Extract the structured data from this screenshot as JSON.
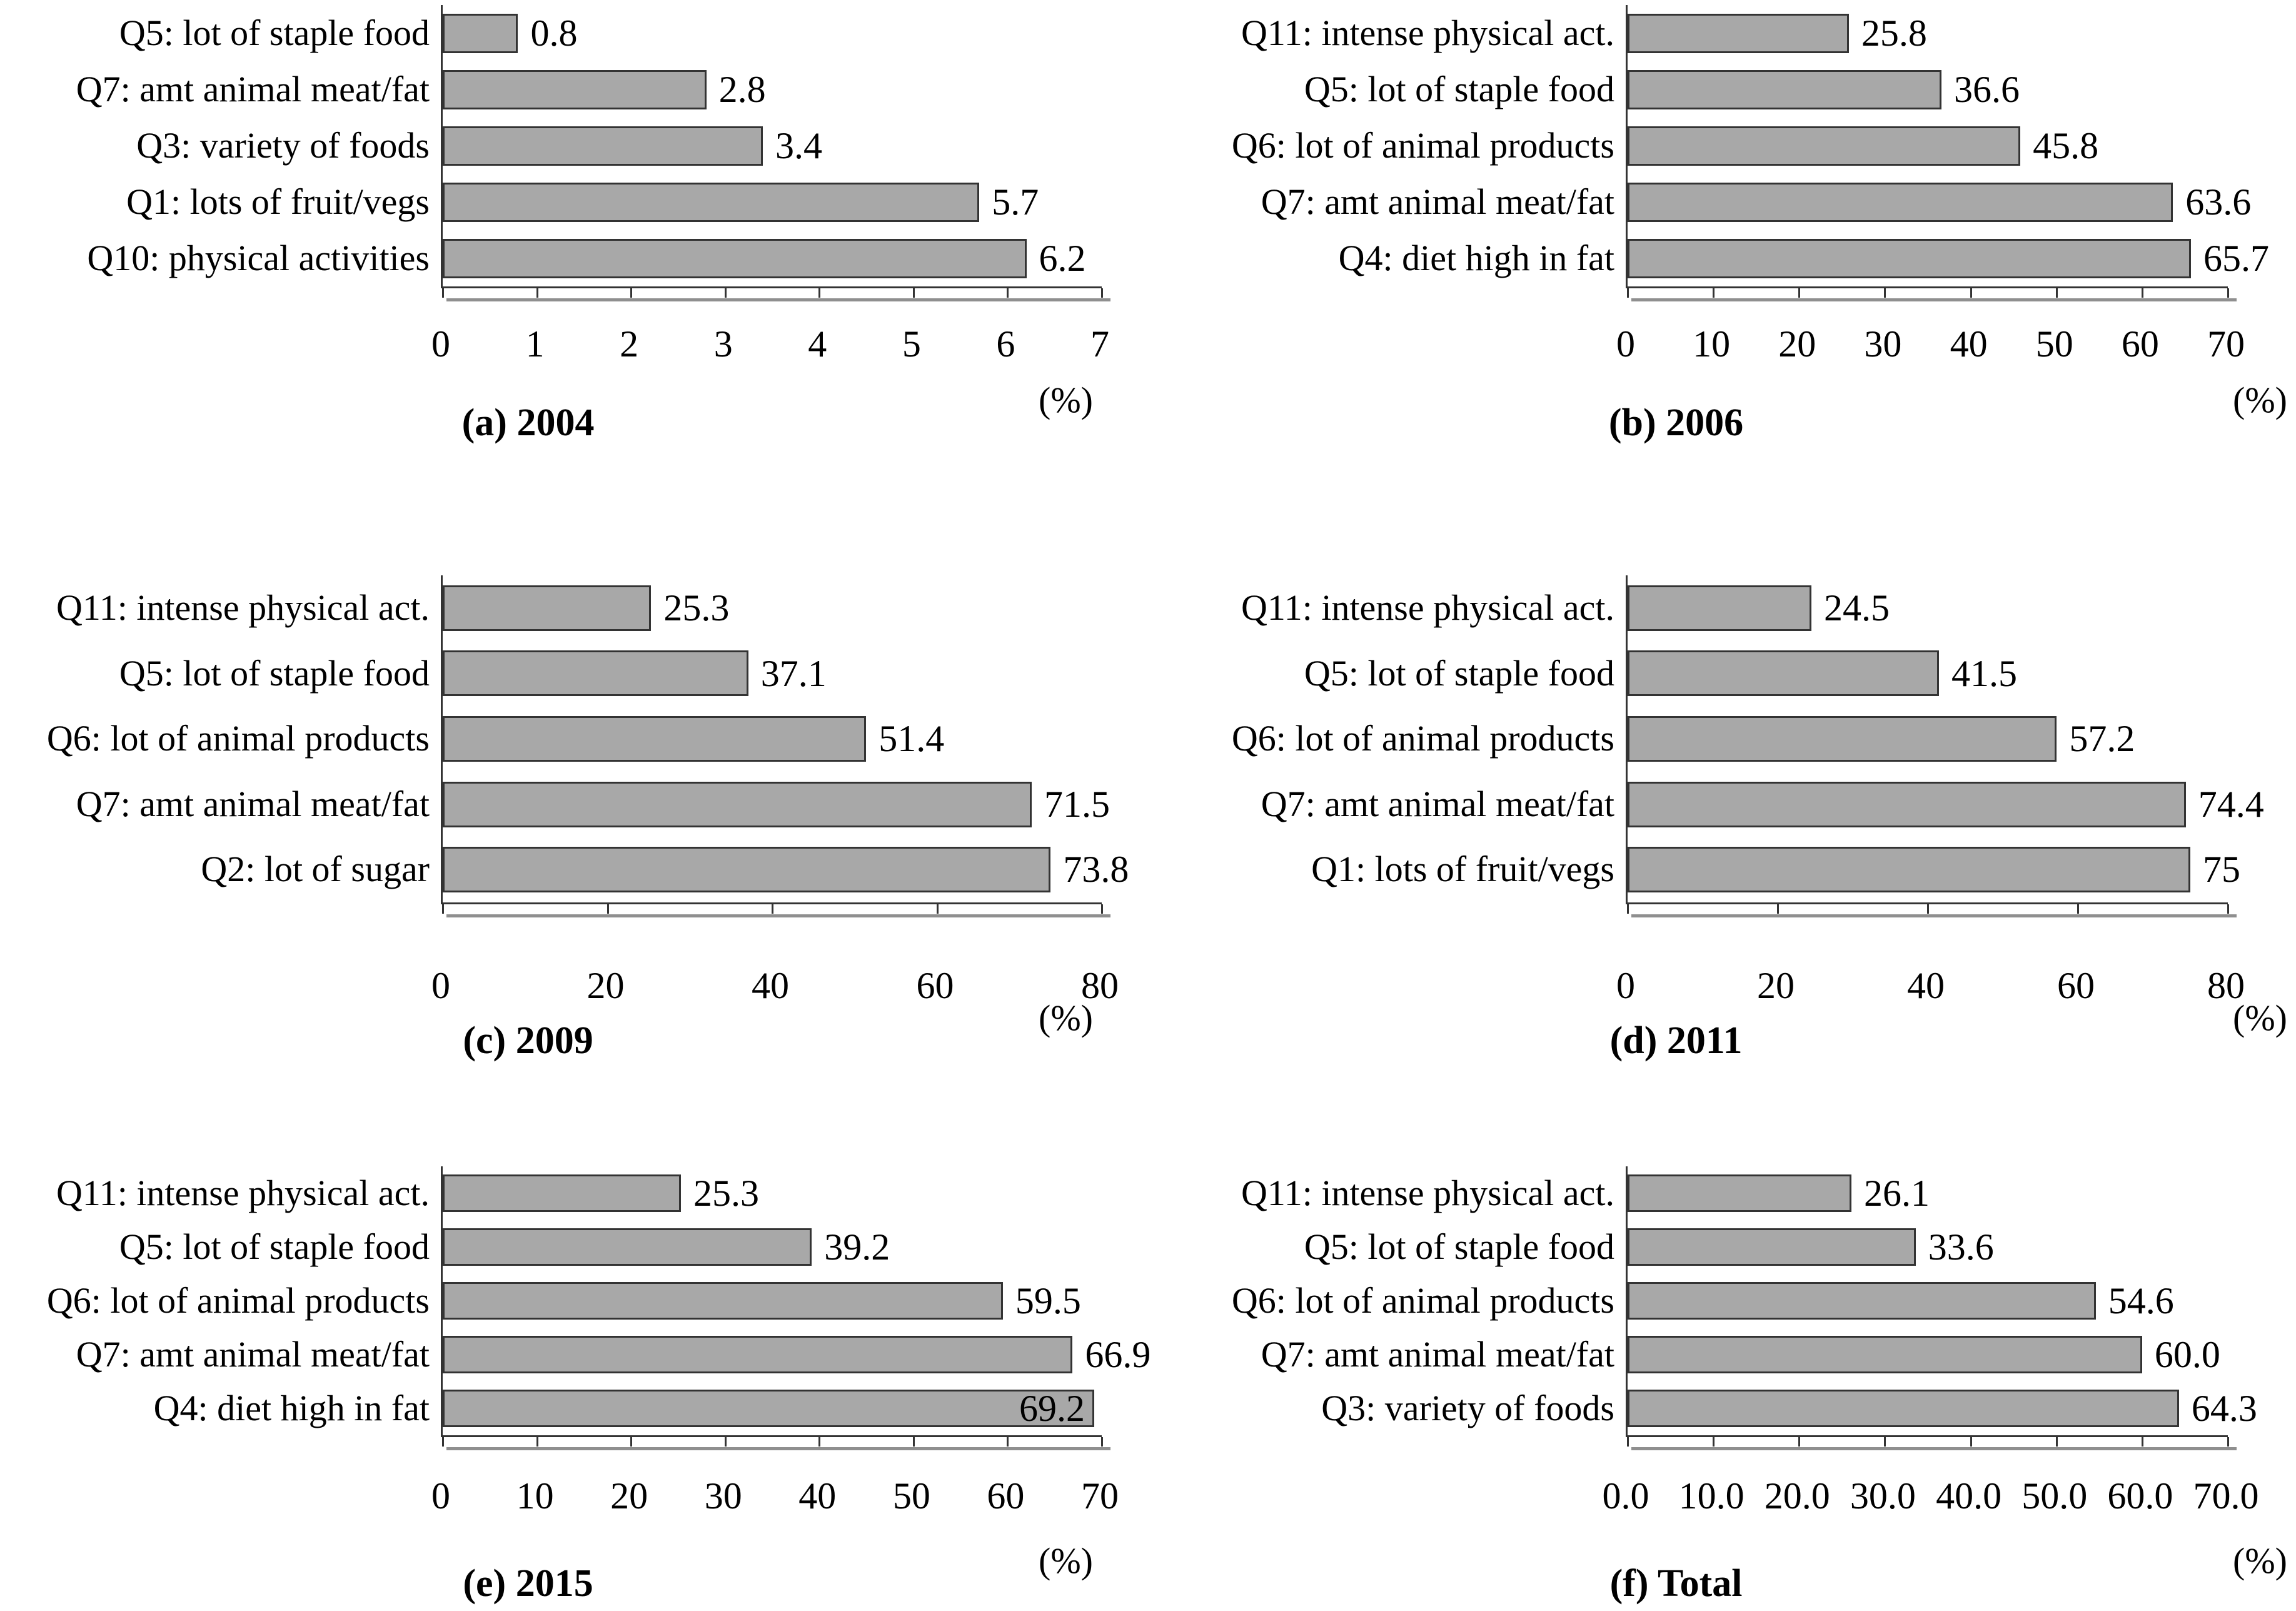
{
  "style": {
    "bar_fill": "#a8a8a8",
    "bar_border": "#333333",
    "axis_color": "#333333",
    "axis_shadow_color": "#8f8f8f",
    "text_color": "#000000"
  },
  "chart_data": [
    {
      "id": "a",
      "type": "bar",
      "orientation": "horizontal",
      "title": "(a) 2004",
      "xlabel": "(%)",
      "categories": [
        "Q5: lot of staple food",
        "Q7: amt animal meat/fat",
        "Q3: variety of foods",
        "Q1: lots of fruit/vegs",
        "Q10: physical activities"
      ],
      "values": [
        0.8,
        2.8,
        3.4,
        5.7,
        6.2
      ],
      "value_labels": [
        "0.8",
        "2.8",
        "3.4",
        "5.7",
        "6.2"
      ],
      "xlim": [
        0,
        7
      ],
      "xticks": [
        "0",
        "1",
        "2",
        "3",
        "4",
        "5",
        "6",
        "7"
      ],
      "grid": false,
      "legend": "none"
    },
    {
      "id": "b",
      "type": "bar",
      "orientation": "horizontal",
      "title": "(b) 2006",
      "xlabel": "(%)",
      "categories": [
        "Q11: intense physical act.",
        "Q5: lot of staple food",
        "Q6: lot of animal products",
        "Q7: amt animal meat/fat",
        "Q4: diet high in fat"
      ],
      "values": [
        25.8,
        36.6,
        45.8,
        63.6,
        65.7
      ],
      "value_labels": [
        "25.8",
        "36.6",
        "45.8",
        "63.6",
        "65.7"
      ],
      "xlim": [
        0,
        70
      ],
      "xticks": [
        "0",
        "10",
        "20",
        "30",
        "40",
        "50",
        "60",
        "70"
      ],
      "grid": false,
      "legend": "none"
    },
    {
      "id": "c",
      "type": "bar",
      "orientation": "horizontal",
      "title": "(c) 2009",
      "xlabel": "(%)",
      "categories": [
        "Q11: intense physical act.",
        "Q5: lot of staple food",
        "Q6: lot of animal products",
        "Q7: amt animal meat/fat",
        "Q2: lot of sugar"
      ],
      "values": [
        25.3,
        37.1,
        51.4,
        71.5,
        73.8
      ],
      "value_labels": [
        "25.3",
        "37.1",
        "51.4",
        "71.5",
        "73.8"
      ],
      "xlim": [
        0,
        80
      ],
      "xticks": [
        "0",
        "20",
        "40",
        "60",
        "80"
      ],
      "grid": false,
      "legend": "none"
    },
    {
      "id": "d",
      "type": "bar",
      "orientation": "horizontal",
      "title": "(d) 2011",
      "xlabel": "(%)",
      "categories": [
        "Q11: intense physical act.",
        "Q5: lot of staple food",
        "Q6: lot of animal products",
        "Q7: amt animal meat/fat",
        "Q1: lots of fruit/vegs"
      ],
      "values": [
        24.5,
        41.5,
        57.2,
        74.4,
        75
      ],
      "value_labels": [
        "24.5",
        "41.5",
        "57.2",
        "74.4",
        "75"
      ],
      "xlim": [
        0,
        80
      ],
      "xticks": [
        "0",
        "20",
        "40",
        "60",
        "80"
      ],
      "grid": false,
      "legend": "none"
    },
    {
      "id": "e",
      "type": "bar",
      "orientation": "horizontal",
      "title": "(e) 2015",
      "xlabel": "(%)",
      "categories": [
        "Q11: intense physical act.",
        "Q5: lot of staple food",
        "Q6: lot of animal products",
        "Q7: amt animal meat/fat",
        "Q4: diet high in fat"
      ],
      "values": [
        25.3,
        39.2,
        59.5,
        66.9,
        69.2
      ],
      "value_labels": [
        "25.3",
        "39.2",
        "59.5",
        "66.9",
        "69.2"
      ],
      "xlim": [
        0,
        70
      ],
      "xticks": [
        "0",
        "10",
        "20",
        "30",
        "40",
        "50",
        "60",
        "70"
      ],
      "grid": false,
      "legend": "none"
    },
    {
      "id": "f",
      "type": "bar",
      "orientation": "horizontal",
      "title": "(f) Total",
      "xlabel": "(%)",
      "categories": [
        "Q11: intense physical act.",
        "Q5: lot of staple food",
        "Q6: lot of animal products",
        "Q7: amt animal meat/fat",
        "Q3: variety of foods"
      ],
      "values": [
        26.1,
        33.6,
        54.6,
        60.0,
        64.3
      ],
      "value_labels": [
        "26.1",
        "33.6",
        "54.6",
        "60.0",
        "64.3"
      ],
      "xlim": [
        0,
        70
      ],
      "xticks": [
        "0.0",
        "10.0",
        "20.0",
        "30.0",
        "40.0",
        "50.0",
        "60.0",
        "70.0"
      ],
      "grid": false,
      "legend": "none"
    }
  ]
}
